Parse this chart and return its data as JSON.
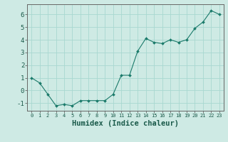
{
  "x": [
    0,
    1,
    2,
    3,
    4,
    5,
    6,
    7,
    8,
    9,
    10,
    11,
    12,
    13,
    14,
    15,
    16,
    17,
    18,
    19,
    20,
    21,
    22,
    23
  ],
  "y": [
    1.0,
    0.6,
    -0.3,
    -1.2,
    -1.1,
    -1.2,
    -0.8,
    -0.8,
    -0.8,
    -0.8,
    -0.3,
    1.2,
    1.2,
    3.1,
    4.1,
    3.8,
    3.7,
    4.0,
    3.8,
    4.0,
    4.9,
    5.4,
    6.3,
    6.0
  ],
  "xlabel": "Humidex (Indice chaleur)",
  "xlim": [
    -0.5,
    23.5
  ],
  "ylim": [
    -1.6,
    6.8
  ],
  "yticks": [
    -1,
    0,
    1,
    2,
    3,
    4,
    5,
    6
  ],
  "xticks": [
    0,
    1,
    2,
    3,
    4,
    5,
    6,
    7,
    8,
    9,
    10,
    11,
    12,
    13,
    14,
    15,
    16,
    17,
    18,
    19,
    20,
    21,
    22,
    23
  ],
  "line_color": "#1a7a6a",
  "marker": "D",
  "marker_size": 2.0,
  "bg_color": "#ceeae4",
  "grid_color": "#a8d8d0",
  "font_family": "monospace",
  "xlabel_fontsize": 7.5,
  "tick_fontsize_x": 5.0,
  "tick_fontsize_y": 6.5,
  "text_color": "#1a5a4a"
}
